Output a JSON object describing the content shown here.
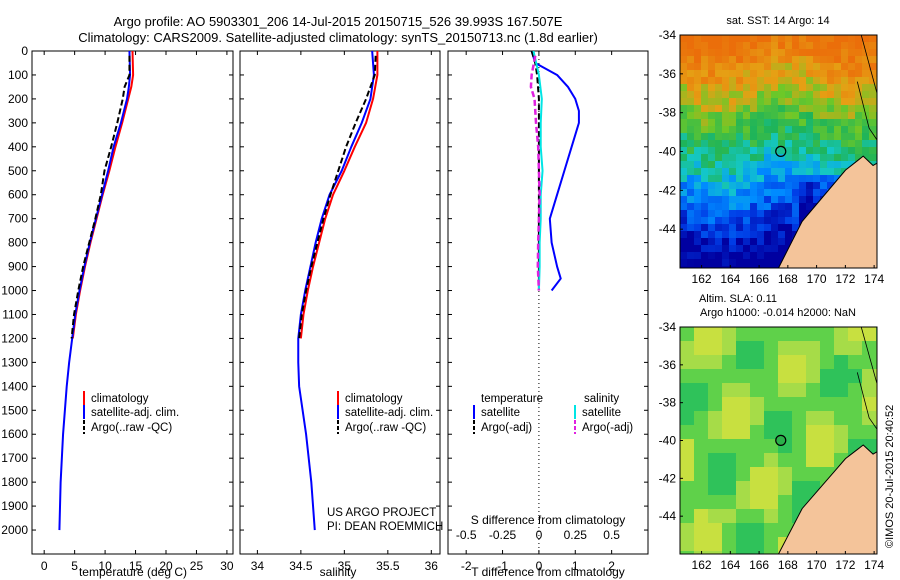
{
  "titles": {
    "line1": "Argo profile: AO 5903301_206 14-Jul-2015 20150715_526 39.993S 167.507E",
    "line2": "Climatology: CARS2009. Satellite-adjusted climatology: synTS_20150713.nc (1.8d earlier)"
  },
  "map_titles": {
    "sst": "sat. SST: 14 Argo: 14",
    "sla_1": "Altim. SLA: 0.11",
    "sla_2": "Argo h1000: -0.014 h2000: NaN"
  },
  "credits": {
    "project": "US ARGO PROJECT",
    "pi": "PI: DEAN ROEMMICH",
    "imos": "©IMOS 20-Jul-2015 20:40:52"
  },
  "legend": {
    "climatology": "climatology",
    "satellite": "satellite-adj. clim.",
    "argo": "Argo(..raw -QC)",
    "diff_temperature": "temperature",
    "diff_salinity": "salinity",
    "diff_satellite": "satellite",
    "diff_argo": "Argo(-adj)"
  },
  "axis_labels": {
    "temperature": "temperature (deg C)",
    "salinity": "salinity",
    "t_diff": "T difference from climatology",
    "s_diff": "S difference from climatology"
  },
  "colors": {
    "climatology": "#ff0000",
    "satellite": "#0000ff",
    "argo": "#000000",
    "sal_satellite": "#00e5e5",
    "sal_argo": "#e020e0"
  },
  "chart_data": [
    {
      "type": "line",
      "panel": "temperature",
      "xlabel": "temperature (deg C)",
      "ylabel": "",
      "xlim": [
        -2,
        31
      ],
      "ylim": [
        2100,
        0
      ],
      "xticks": [
        0,
        5,
        10,
        15,
        20,
        25,
        30
      ],
      "yticks": [
        0,
        100,
        200,
        300,
        400,
        500,
        600,
        700,
        800,
        900,
        1000,
        1100,
        1200,
        1300,
        1400,
        1500,
        1600,
        1700,
        1800,
        1900,
        2000
      ],
      "series": [
        {
          "name": "climatology",
          "points": [
            [
              14.5,
              0
            ],
            [
              14.6,
              100
            ],
            [
              14.3,
              150
            ],
            [
              13.8,
              200
            ],
            [
              12.8,
              300
            ],
            [
              11.7,
              400
            ],
            [
              10.7,
              500
            ],
            [
              9.6,
              600
            ],
            [
              8.6,
              700
            ],
            [
              7.6,
              800
            ],
            [
              6.7,
              900
            ],
            [
              5.9,
              1000
            ],
            [
              5.2,
              1100
            ],
            [
              4.7,
              1200
            ]
          ]
        },
        {
          "name": "satellite-adj. clim.",
          "points": [
            [
              14.0,
              0
            ],
            [
              14.1,
              100
            ],
            [
              13.9,
              150
            ],
            [
              13.6,
              200
            ],
            [
              12.6,
              300
            ],
            [
              11.4,
              400
            ],
            [
              10.5,
              500
            ],
            [
              9.5,
              600
            ],
            [
              8.5,
              700
            ],
            [
              7.5,
              800
            ],
            [
              6.6,
              900
            ],
            [
              5.8,
              1000
            ],
            [
              5.1,
              1100
            ],
            [
              4.6,
              1200
            ],
            [
              4.1,
              1300
            ],
            [
              3.7,
              1400
            ],
            [
              3.4,
              1500
            ],
            [
              3.1,
              1600
            ],
            [
              2.9,
              1700
            ],
            [
              2.7,
              1800
            ],
            [
              2.6,
              1900
            ],
            [
              2.5,
              2000
            ]
          ]
        },
        {
          "name": "Argo(..raw -QC)",
          "points": [
            [
              14.0,
              20
            ],
            [
              14.0,
              100
            ],
            [
              13.2,
              150
            ],
            [
              12.9,
              200
            ],
            [
              12.0,
              300
            ],
            [
              11.0,
              400
            ],
            [
              9.9,
              500
            ],
            [
              9.3,
              600
            ],
            [
              8.4,
              700
            ],
            [
              7.4,
              800
            ],
            [
              6.4,
              900
            ],
            [
              5.6,
              1000
            ],
            [
              4.9,
              1100
            ],
            [
              4.5,
              1200
            ]
          ]
        }
      ]
    },
    {
      "type": "line",
      "panel": "salinity",
      "xlabel": "salinity",
      "ylabel": "",
      "xlim": [
        33.8,
        36.1
      ],
      "ylim": [
        2100,
        0
      ],
      "xticks": [
        34,
        34.5,
        35,
        35.5,
        36
      ],
      "series": [
        {
          "name": "climatology",
          "points": [
            [
              35.38,
              0
            ],
            [
              35.38,
              100
            ],
            [
              35.33,
              200
            ],
            [
              35.25,
              300
            ],
            [
              35.12,
              400
            ],
            [
              35.0,
              500
            ],
            [
              34.87,
              600
            ],
            [
              34.78,
              700
            ],
            [
              34.71,
              800
            ],
            [
              34.64,
              900
            ],
            [
              34.58,
              1000
            ],
            [
              34.53,
              1100
            ],
            [
              34.5,
              1200
            ]
          ]
        },
        {
          "name": "satellite-adj. clim.",
          "points": [
            [
              35.32,
              0
            ],
            [
              35.34,
              100
            ],
            [
              35.3,
              200
            ],
            [
              35.2,
              300
            ],
            [
              35.08,
              400
            ],
            [
              34.97,
              500
            ],
            [
              34.83,
              600
            ],
            [
              34.74,
              700
            ],
            [
              34.67,
              800
            ],
            [
              34.61,
              900
            ],
            [
              34.55,
              1000
            ],
            [
              34.5,
              1100
            ],
            [
              34.47,
              1200
            ],
            [
              34.47,
              1300
            ],
            [
              34.48,
              1400
            ],
            [
              34.52,
              1500
            ],
            [
              34.56,
              1600
            ],
            [
              34.59,
              1700
            ],
            [
              34.62,
              1800
            ],
            [
              34.64,
              1900
            ],
            [
              34.66,
              2000
            ]
          ]
        },
        {
          "name": "Argo(..raw -QC)",
          "points": [
            [
              35.36,
              20
            ],
            [
              35.35,
              100
            ],
            [
              35.25,
              200
            ],
            [
              35.13,
              300
            ],
            [
              35.02,
              400
            ],
            [
              34.93,
              500
            ],
            [
              34.84,
              600
            ],
            [
              34.76,
              700
            ],
            [
              34.69,
              800
            ],
            [
              34.62,
              900
            ],
            [
              34.56,
              1000
            ],
            [
              34.51,
              1100
            ],
            [
              34.48,
              1200
            ]
          ]
        }
      ]
    },
    {
      "type": "line",
      "panel": "difference",
      "xlabel": "T difference from climatology",
      "ylabel": "",
      "xlim": [
        -2.5,
        3.0
      ],
      "ylim": [
        2100,
        0
      ],
      "xticks": [
        -2,
        -1,
        0,
        1,
        2
      ],
      "sxticks_label": "S difference from climatology",
      "sxticks": [
        -0.5,
        -0.25,
        0,
        0.25,
        0.5
      ],
      "series": [
        {
          "name": "temperature satellite",
          "points": [
            [
              -0.2,
              0
            ],
            [
              -0.1,
              50
            ],
            [
              0.5,
              100
            ],
            [
              0.8,
              150
            ],
            [
              1.0,
              200
            ],
            [
              1.1,
              250
            ],
            [
              1.1,
              300
            ],
            [
              0.9,
              400
            ],
            [
              0.7,
              500
            ],
            [
              0.5,
              600
            ],
            [
              0.3,
              700
            ],
            [
              0.35,
              800
            ],
            [
              0.5,
              900
            ],
            [
              0.6,
              950
            ],
            [
              0.35,
              1000
            ]
          ]
        },
        {
          "name": "temperature Argo(-adj)",
          "points": [
            [
              -0.2,
              0
            ],
            [
              -0.1,
              50
            ],
            [
              -0.05,
              100
            ],
            [
              0,
              200
            ],
            [
              0,
              300
            ],
            [
              0,
              500
            ],
            [
              0,
              700
            ],
            [
              0,
              900
            ],
            [
              0,
              1000
            ]
          ]
        },
        {
          "name": "salinity satellite",
          "points": [
            [
              -0.15,
              0
            ],
            [
              0,
              100
            ],
            [
              0.08,
              200
            ],
            [
              0.05,
              300
            ],
            [
              0.05,
              400
            ],
            [
              0.1,
              500
            ],
            [
              0.05,
              600
            ],
            [
              0.05,
              700
            ],
            [
              0.02,
              800
            ],
            [
              0.02,
              900
            ],
            [
              0,
              1000
            ]
          ]
        },
        {
          "name": "salinity Argo(-adj)",
          "points": [
            [
              -0.1,
              20
            ],
            [
              -0.2,
              100
            ],
            [
              -0.22,
              150
            ],
            [
              -0.12,
              200
            ],
            [
              -0.08,
              300
            ],
            [
              -0.02,
              400
            ],
            [
              0,
              500
            ],
            [
              0.02,
              600
            ],
            [
              0,
              700
            ],
            [
              -0.02,
              800
            ],
            [
              -0.03,
              900
            ],
            [
              0,
              1000
            ]
          ]
        }
      ]
    },
    {
      "type": "heatmap",
      "panel": "sat. SST map",
      "title": "sat. SST: 14 Argo: 14",
      "xlim": [
        160.5,
        174.2
      ],
      "ylim": [
        -46,
        -34
      ],
      "xticks": [
        162,
        164,
        166,
        168,
        170,
        172,
        174
      ],
      "yticks": [
        -34,
        -36,
        -38,
        -40,
        -42,
        -44
      ],
      "argo_location": [
        167.507,
        -39.993
      ]
    },
    {
      "type": "heatmap",
      "panel": "altimetry SLA map",
      "title": "Altim. SLA: 0.11",
      "xlim": [
        160.5,
        174.2
      ],
      "ylim": [
        -46,
        -34
      ],
      "xticks": [
        162,
        164,
        166,
        168,
        170,
        172,
        174
      ],
      "yticks": [
        -34,
        -36,
        -38,
        -40,
        -42,
        -44
      ],
      "argo_location": [
        167.507,
        -39.993
      ]
    }
  ]
}
